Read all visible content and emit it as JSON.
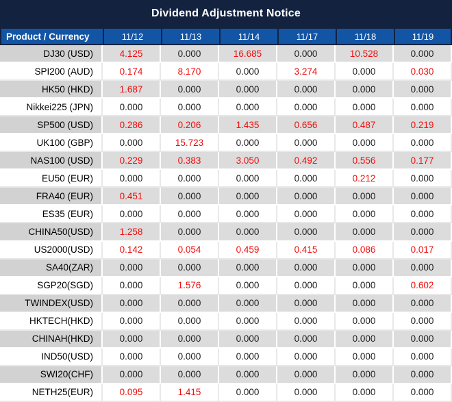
{
  "title": "Dividend Adjustment Notice",
  "table": {
    "header": {
      "product_label": "Product / Currency",
      "dates": [
        "11/12",
        "11/13",
        "11/14",
        "11/17",
        "11/18",
        "11/19"
      ]
    },
    "rows": [
      {
        "product": "DJ30 (USD)",
        "values": [
          "4.125",
          "0.000",
          "16.685",
          "0.000",
          "10.528",
          "0.000"
        ]
      },
      {
        "product": "SPI200 (AUD)",
        "values": [
          "0.174",
          "8.170",
          "0.000",
          "3.274",
          "0.000",
          "0.030"
        ]
      },
      {
        "product": "HK50 (HKD)",
        "values": [
          "1.687",
          "0.000",
          "0.000",
          "0.000",
          "0.000",
          "0.000"
        ]
      },
      {
        "product": "Nikkei225 (JPN)",
        "values": [
          "0.000",
          "0.000",
          "0.000",
          "0.000",
          "0.000",
          "0.000"
        ]
      },
      {
        "product": "SP500 (USD)",
        "values": [
          "0.286",
          "0.206",
          "1.435",
          "0.656",
          "0.487",
          "0.219"
        ]
      },
      {
        "product": "UK100 (GBP)",
        "values": [
          "0.000",
          "15.723",
          "0.000",
          "0.000",
          "0.000",
          "0.000"
        ]
      },
      {
        "product": "NAS100 (USD)",
        "values": [
          "0.229",
          "0.383",
          "3.050",
          "0.492",
          "0.556",
          "0.177"
        ]
      },
      {
        "product": "EU50 (EUR)",
        "values": [
          "0.000",
          "0.000",
          "0.000",
          "0.000",
          "0.212",
          "0.000"
        ]
      },
      {
        "product": "FRA40 (EUR)",
        "values": [
          "0.451",
          "0.000",
          "0.000",
          "0.000",
          "0.000",
          "0.000"
        ]
      },
      {
        "product": "ES35 (EUR)",
        "values": [
          "0.000",
          "0.000",
          "0.000",
          "0.000",
          "0.000",
          "0.000"
        ]
      },
      {
        "product": "CHINA50(USD)",
        "values": [
          "1.258",
          "0.000",
          "0.000",
          "0.000",
          "0.000",
          "0.000"
        ]
      },
      {
        "product": "US2000(USD)",
        "values": [
          "0.142",
          "0.054",
          "0.459",
          "0.415",
          "0.086",
          "0.017"
        ]
      },
      {
        "product": "SA40(ZAR)",
        "values": [
          "0.000",
          "0.000",
          "0.000",
          "0.000",
          "0.000",
          "0.000"
        ]
      },
      {
        "product": "SGP20(SGD)",
        "values": [
          "0.000",
          "1.576",
          "0.000",
          "0.000",
          "0.000",
          "0.602"
        ]
      },
      {
        "product": "TWINDEX(USD)",
        "values": [
          "0.000",
          "0.000",
          "0.000",
          "0.000",
          "0.000",
          "0.000"
        ]
      },
      {
        "product": "HKTECH(HKD)",
        "values": [
          "0.000",
          "0.000",
          "0.000",
          "0.000",
          "0.000",
          "0.000"
        ]
      },
      {
        "product": "CHINAH(HKD)",
        "values": [
          "0.000",
          "0.000",
          "0.000",
          "0.000",
          "0.000",
          "0.000"
        ]
      },
      {
        "product": "IND50(USD)",
        "values": [
          "0.000",
          "0.000",
          "0.000",
          "0.000",
          "0.000",
          "0.000"
        ]
      },
      {
        "product": "SWI20(CHF)",
        "values": [
          "0.000",
          "0.000",
          "0.000",
          "0.000",
          "0.000",
          "0.000"
        ]
      },
      {
        "product": "NETH25(EUR)",
        "values": [
          "0.095",
          "1.415",
          "0.000",
          "0.000",
          "0.000",
          "0.000"
        ]
      }
    ]
  },
  "colors": {
    "title_bar_bg": "#13223f",
    "title_text": "#ffffff",
    "header_bg": "#1355a5",
    "header_text": "#ffffff",
    "row_bg": "#ffffff",
    "row_alt_bg": "#dcdcdc",
    "row_alt_product_bg": "#d2d2d2",
    "value_zero": "#1d1d1d",
    "value_nonzero": "#f20d0d"
  }
}
